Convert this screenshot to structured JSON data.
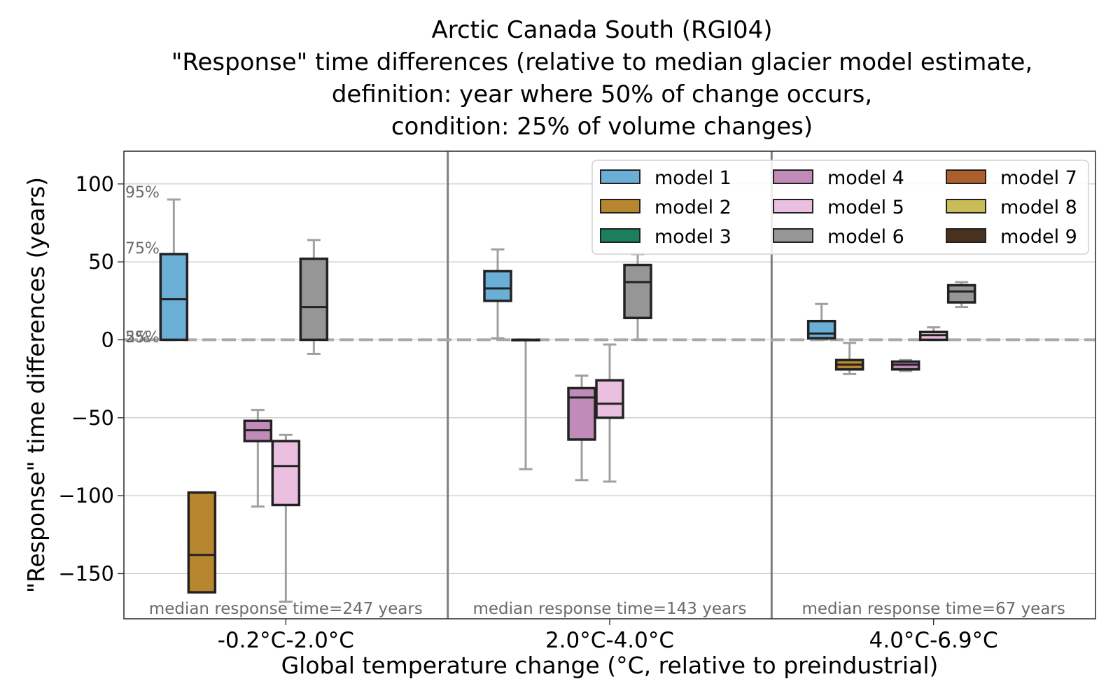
{
  "chart_data": {
    "type": "box",
    "title": [
      "Arctic Canada South (RGI04)",
      "\"Response\" time differences (relative to median glacier model estimate,",
      "definition: year where 50% of change occurs,",
      "condition: 25% of volume changes)"
    ],
    "xlabel": "Global temperature change (°C, relative to preindustrial)",
    "ylabel": "\"Response\" time differences (years)",
    "ylim": [
      -179,
      121
    ],
    "yticks": [
      100,
      50,
      0,
      -50,
      -100,
      -150
    ],
    "ytick_labels": [
      "100",
      "50",
      "0",
      "−50",
      "−100",
      "−150"
    ],
    "grid": "horizontal",
    "legend_position": "top-right",
    "reference_line": 0,
    "percentile_labels": [
      {
        "text": "95%",
        "y": 95
      },
      {
        "text": "75%",
        "y": 59
      },
      {
        "text": "25%",
        "y": 2
      },
      {
        "text": "5%",
        "y": 2
      }
    ],
    "models": [
      {
        "name": "model 1",
        "color": "#6baed6"
      },
      {
        "name": "model 2",
        "color": "#b8862e"
      },
      {
        "name": "model 3",
        "color": "#1b7f5d"
      },
      {
        "name": "model 4",
        "color": "#c08bb8"
      },
      {
        "name": "model 5",
        "color": "#ebbfdf"
      },
      {
        "name": "model 6",
        "color": "#969696"
      },
      {
        "name": "model 7",
        "color": "#ad5f2b"
      },
      {
        "name": "model 8",
        "color": "#c9bd58"
      },
      {
        "name": "model 9",
        "color": "#4a311f"
      }
    ],
    "groups": [
      {
        "label": "-0.2°C-2.0°C",
        "annotation": "median response time=247 years",
        "boxes": [
          {
            "model": 0,
            "whislo": 0,
            "q1": 0,
            "med": 26,
            "q3": 55,
            "whishi": 90
          },
          {
            "model": 1,
            "whislo": -162,
            "q1": -162,
            "med": -138,
            "q3": -98,
            "whishi": -98
          },
          {
            "model": 3,
            "whislo": -107,
            "q1": -65,
            "med": -58,
            "q3": -52,
            "whishi": -45
          },
          {
            "model": 4,
            "whislo": -168,
            "q1": -106,
            "med": -81,
            "q3": -65,
            "whishi": -61
          },
          {
            "model": 5,
            "whislo": -9,
            "q1": 0,
            "med": 21,
            "q3": 52,
            "whishi": 64
          }
        ]
      },
      {
        "label": "2.0°C-4.0°C",
        "annotation": "median response time=143 years",
        "boxes": [
          {
            "model": 0,
            "whislo": 1,
            "q1": 25,
            "med": 33,
            "q3": 44,
            "whishi": 58
          },
          {
            "model": 1,
            "whislo": -83,
            "q1": 0,
            "med": 0,
            "q3": 0,
            "whishi": 0
          },
          {
            "model": 3,
            "whislo": -90,
            "q1": -64,
            "med": -37,
            "q3": -31,
            "whishi": -23
          },
          {
            "model": 4,
            "whislo": -91,
            "q1": -50,
            "med": -41,
            "q3": -26,
            "whishi": -3
          },
          {
            "model": 5,
            "whislo": 0,
            "q1": 14,
            "med": 37,
            "q3": 48,
            "whishi": 55
          }
        ]
      },
      {
        "label": "4.0°C-6.9°C",
        "annotation": "median response time=67 years",
        "boxes": [
          {
            "model": 0,
            "whislo": 0,
            "q1": 1,
            "med": 4,
            "q3": 12,
            "whishi": 23
          },
          {
            "model": 1,
            "whislo": -22,
            "q1": -19,
            "med": -16,
            "q3": -13,
            "whishi": -2
          },
          {
            "model": 3,
            "whislo": -20,
            "q1": -19,
            "med": -16,
            "q3": -14,
            "whishi": -13
          },
          {
            "model": 4,
            "whislo": 0,
            "q1": 0,
            "med": 3,
            "q3": 5,
            "whishi": 8
          },
          {
            "model": 5,
            "whislo": 21,
            "q1": 24,
            "med": 31,
            "q3": 35,
            "whishi": 37
          }
        ]
      }
    ]
  }
}
